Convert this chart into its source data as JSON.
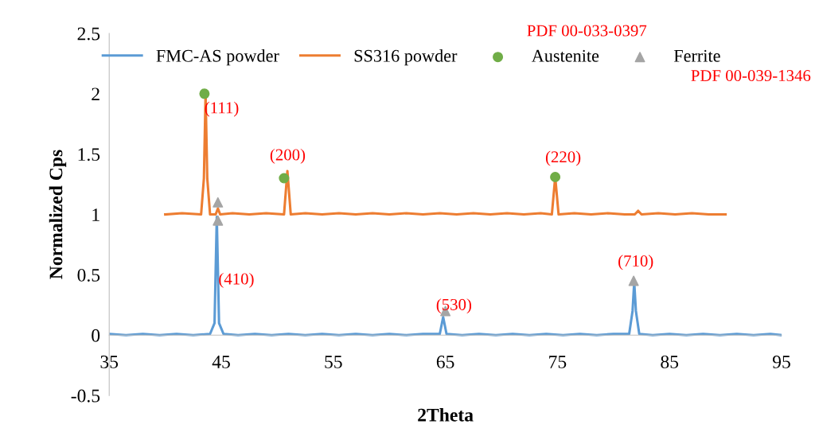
{
  "chart_data": {
    "type": "line",
    "xlabel": "2Theta",
    "ylabel": "Normalized Cps",
    "xlim": [
      35,
      95
    ],
    "xticks": [
      35,
      45,
      55,
      65,
      75,
      85,
      95
    ],
    "ylim": [
      -0.5,
      2.5
    ],
    "yticks": [
      -0.5,
      0,
      0.5,
      1,
      1.5,
      2,
      2.5
    ],
    "grid": false,
    "legend": "top",
    "series": [
      {
        "name": "FMC-AS powder",
        "color": "#5b9bd5",
        "marker": "none",
        "x": [
          35,
          36.5,
          38,
          39.5,
          41,
          42.5,
          44.0,
          44.4,
          44.6,
          44.8,
          45.2,
          46.5,
          48,
          49.5,
          51,
          52.5,
          54,
          55.5,
          57,
          58.5,
          60,
          61.5,
          63,
          64.5,
          64.8,
          65.1,
          66.5,
          68,
          69.5,
          71,
          72.5,
          74,
          75.5,
          77,
          78.5,
          80,
          81.4,
          81.7,
          81.85,
          82.0,
          82.3,
          83.5,
          85,
          86.5,
          88,
          89.5,
          91,
          92.5,
          94,
          95
        ],
        "values": [
          0.01,
          0.0,
          0.01,
          0.0,
          0.01,
          0.0,
          0.01,
          0.1,
          0.98,
          0.1,
          0.01,
          0.0,
          0.01,
          0.0,
          0.01,
          0.0,
          0.01,
          0.0,
          0.01,
          0.0,
          0.01,
          0.0,
          0.01,
          0.01,
          0.15,
          0.01,
          0.0,
          0.01,
          0.0,
          0.01,
          0.0,
          0.01,
          0.0,
          0.01,
          0.0,
          0.01,
          0.01,
          0.2,
          0.44,
          0.2,
          0.01,
          0.0,
          0.01,
          0.0,
          0.01,
          0.0,
          0.01,
          0.0,
          0.01,
          0.0
        ]
      },
      {
        "name": "SS316 powder",
        "color": "#ed7d31",
        "marker": "none",
        "x": [
          40,
          41.5,
          43.2,
          43.45,
          43.6,
          43.75,
          44.0,
          44.5,
          44.7,
          44.9,
          46,
          47.5,
          49,
          50.6,
          50.9,
          51.2,
          52.5,
          54,
          55.5,
          57,
          58.5,
          60,
          61.5,
          63,
          64.5,
          66,
          67.5,
          69,
          70.5,
          72,
          73.5,
          74.5,
          74.8,
          75.1,
          76.5,
          78,
          79.5,
          81,
          81.9,
          82.2,
          82.5,
          84,
          85.5,
          87,
          88.5,
          90
        ],
        "values": [
          1.0,
          1.01,
          1.0,
          1.3,
          2.0,
          1.3,
          1.0,
          1.0,
          1.05,
          1.0,
          1.01,
          1.0,
          1.01,
          1.0,
          1.36,
          1.0,
          1.01,
          1.0,
          1.01,
          1.0,
          1.01,
          1.0,
          1.01,
          1.0,
          1.01,
          1.0,
          1.01,
          1.0,
          1.01,
          1.0,
          1.01,
          1.0,
          1.31,
          1.0,
          1.01,
          1.0,
          1.01,
          1.0,
          1.0,
          1.03,
          1.0,
          1.01,
          1.0,
          1.01,
          1.0,
          1.0
        ]
      },
      {
        "name": "Austenite",
        "type": "scatter",
        "color": "#70ad47",
        "marker": "circle",
        "x": [
          43.5,
          50.6,
          74.8
        ],
        "values": [
          2.0,
          1.3,
          1.31
        ]
      },
      {
        "name": "Ferrite",
        "type": "scatter",
        "color": "#a5a5a5",
        "marker": "triangle",
        "x": [
          44.7,
          44.7,
          65,
          81.8
        ],
        "values": [
          1.1,
          0.95,
          0.2,
          0.45
        ]
      }
    ],
    "annotations": [
      "(111)",
      "(200)",
      "(220)",
      "(410)",
      "(530)",
      "(710)",
      "PDF 00-033-0397",
      "PDF 00-039-1346"
    ]
  }
}
